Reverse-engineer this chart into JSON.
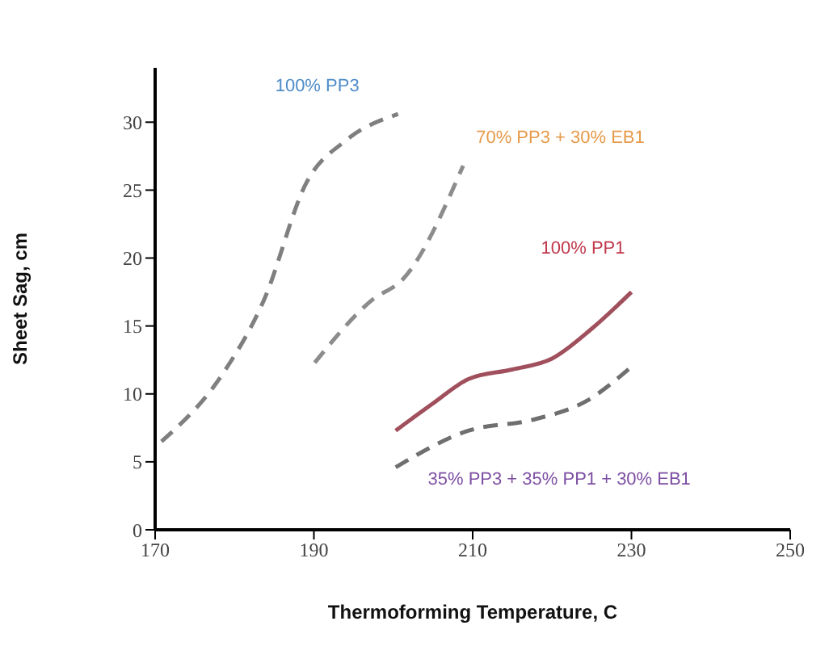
{
  "chart_data": {
    "type": "line",
    "xlabel": "Thermoforming Temperature, C",
    "ylabel": "Sheet Sag, cm",
    "xlim": [
      170,
      250
    ],
    "xticks": [
      170,
      190,
      210,
      230,
      250
    ],
    "ylim": [
      0,
      34
    ],
    "yticks": [
      0,
      5,
      10,
      15,
      20,
      25,
      30
    ],
    "marker": "none",
    "series": [
      {
        "name": "100% PP3",
        "color": "#7f7f7f",
        "line_style": "dashed",
        "x": [
          170.8,
          178.3,
          183.7,
          189.1,
          193.9,
          200.6
        ],
        "values": [
          6.5,
          11.3,
          16.9,
          25.6,
          28.6,
          30.6
        ]
      },
      {
        "name": "70% PP3 + 30% EB1",
        "color": "#8c8c8c",
        "line_style": "dashed",
        "x": [
          190.1,
          197.3,
          201.3,
          208.8
        ],
        "values": [
          12.3,
          16.9,
          18.5,
          26.8
        ]
      },
      {
        "name": "100% PP1",
        "color": "#a0505c",
        "line_style": "solid",
        "x": [
          200.3,
          205,
          209.5,
          215,
          220,
          225,
          230
        ],
        "values": [
          7.3,
          9.3,
          11.1,
          11.8,
          12.6,
          14.8,
          17.5
        ]
      },
      {
        "name": "35% PP3 + 35% PP1 + 30% EB1",
        "color": "#6f6f6f",
        "line_style": "dashed",
        "x": [
          200.3,
          209.5,
          217.6,
          224.4,
          229.8
        ],
        "values": [
          4.6,
          7.3,
          8.1,
          9.5,
          11.9
        ]
      }
    ]
  }
}
